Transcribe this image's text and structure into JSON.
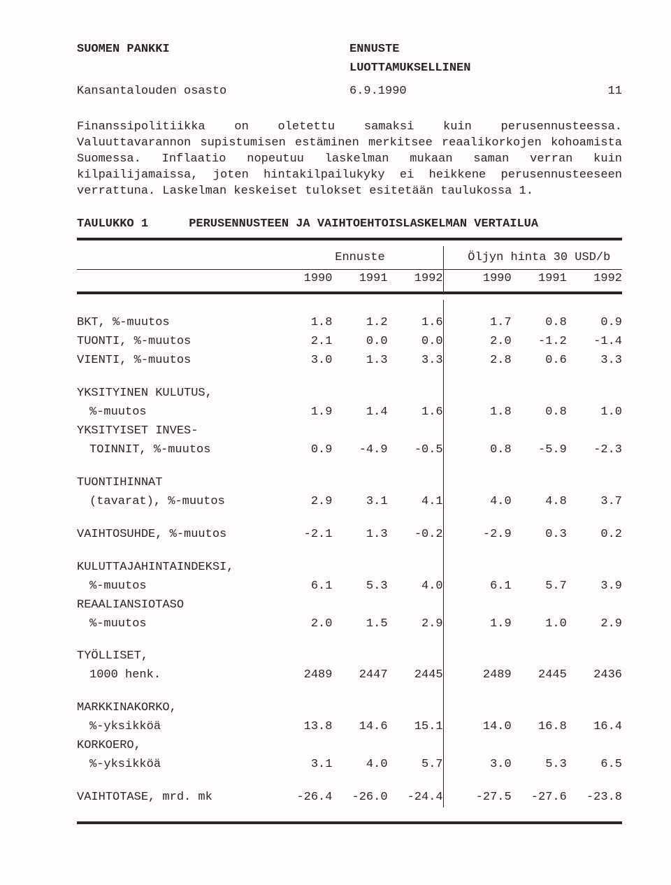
{
  "header": {
    "org": "SUOMEN PANKKI",
    "doc_type": "ENNUSTE",
    "classification": "LUOTTAMUKSELLINEN",
    "dept": "Kansantalouden osasto",
    "date": "6.9.1990",
    "page": "11"
  },
  "paragraph": "Finanssipolitiikka on oletettu samaksi kuin perusennusteessa. Valuuttavarannon supistumisen estäminen merkitsee reaalikorkojen kohoamista Suomessa. Inflaatio nopeutuu laskelman mukaan saman verran kuin kilpailijamaissa, joten hintakilpailukyky ei heikkene perusennusteeseen verrattuna. Laskelman keskeiset tulokset esitetään taulukossa 1.",
  "table": {
    "title_label": "TAULUKKO 1",
    "title_text": "PERUSENNUSTEEN JA VAIHTOEHTOISLASKELMAN VERTAILUA",
    "group_headers": {
      "left": "Ennuste",
      "right": "Öljyn hinta 30 USD/b"
    },
    "years": [
      "1990",
      "1991",
      "1992",
      "1990",
      "1991",
      "1992"
    ],
    "rows": [
      {
        "label": "BKT, %-muutos",
        "v": [
          "1.8",
          "1.2",
          "1.6",
          "1.7",
          "0.8",
          "0.9"
        ]
      },
      {
        "label": "TUONTI, %-muutos",
        "v": [
          "2.1",
          "0.0",
          "0.0",
          "2.0",
          "-1.2",
          "-1.4"
        ]
      },
      {
        "label": "VIENTI, %-muutos",
        "v": [
          "3.0",
          "1.3",
          "3.3",
          "2.8",
          "0.6",
          "3.3"
        ]
      },
      {
        "gap": true
      },
      {
        "label": "YKSITYINEN KULUTUS,",
        "v": [
          "",
          "",
          "",
          "",
          "",
          ""
        ]
      },
      {
        "label": "%-muutos",
        "indent": true,
        "v": [
          "1.9",
          "1.4",
          "1.6",
          "1.8",
          "0.8",
          "1.0"
        ]
      },
      {
        "label": "YKSITYISET INVES-",
        "v": [
          "",
          "",
          "",
          "",
          "",
          ""
        ]
      },
      {
        "label": "TOINNIT, %-muutos",
        "indent": true,
        "v": [
          "0.9",
          "-4.9",
          "-0.5",
          "0.8",
          "-5.9",
          "-2.3"
        ]
      },
      {
        "gap": true
      },
      {
        "label": "TUONTIHINNAT",
        "v": [
          "",
          "",
          "",
          "",
          "",
          ""
        ]
      },
      {
        "label": "(tavarat), %-muutos",
        "indent": true,
        "v": [
          "2.9",
          "3.1",
          "4.1",
          "4.0",
          "4.8",
          "3.7"
        ]
      },
      {
        "gap": true
      },
      {
        "label": "VAIHTOSUHDE, %-muutos",
        "v": [
          "-2.1",
          "1.3",
          "-0.2",
          "-2.9",
          "0.3",
          "0.2"
        ]
      },
      {
        "gap": true
      },
      {
        "label": "KULUTTAJAHINTAINDEKSI,",
        "v": [
          "",
          "",
          "",
          "",
          "",
          ""
        ]
      },
      {
        "label": "%-muutos",
        "indent": true,
        "v": [
          "6.1",
          "5.3",
          "4.0",
          "6.1",
          "5.7",
          "3.9"
        ]
      },
      {
        "label": "REAALIANSIOTASO",
        "v": [
          "",
          "",
          "",
          "",
          "",
          ""
        ]
      },
      {
        "label": "%-muutos",
        "indent": true,
        "v": [
          "2.0",
          "1.5",
          "2.9",
          "1.9",
          "1.0",
          "2.9"
        ]
      },
      {
        "gap": true
      },
      {
        "label": "TYÖLLISET,",
        "v": [
          "",
          "",
          "",
          "",
          "",
          ""
        ]
      },
      {
        "label": "1000 henk.",
        "indent": true,
        "v": [
          "2489",
          "2447",
          "2445",
          "2489",
          "2445",
          "2436"
        ]
      },
      {
        "gap": true
      },
      {
        "label": "MARKKINAKORKO,",
        "v": [
          "",
          "",
          "",
          "",
          "",
          ""
        ]
      },
      {
        "label": "%-yksikköä",
        "indent": true,
        "v": [
          "13.8",
          "14.6",
          "15.1",
          "14.0",
          "16.8",
          "16.4"
        ]
      },
      {
        "label": "KORKOERO,",
        "v": [
          "",
          "",
          "",
          "",
          "",
          ""
        ]
      },
      {
        "label": "%-yksikköä",
        "indent": true,
        "v": [
          "3.1",
          "4.0",
          "5.7",
          "3.0",
          "5.3",
          "6.5"
        ]
      },
      {
        "gap": true
      },
      {
        "label": "VAIHTOTASE, mrd. mk",
        "v": [
          "-26.4",
          "-26.0",
          "-24.4",
          "-27.5",
          "-27.6",
          "-23.8"
        ]
      }
    ]
  }
}
